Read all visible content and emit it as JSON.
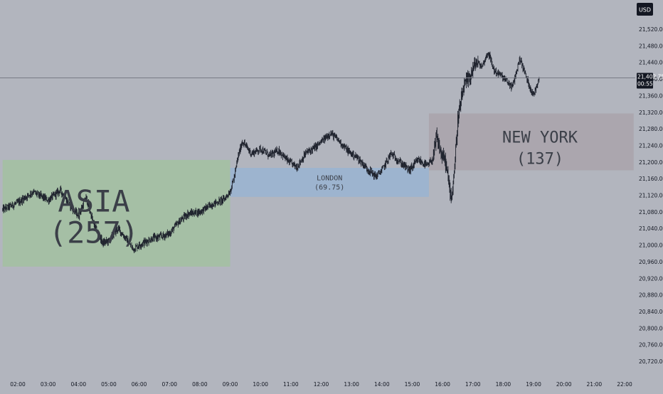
{
  "currency_button": "USD",
  "last_price": {
    "value": "21,402.75",
    "countdown": "00:55"
  },
  "colors": {
    "background": "#b2b5be",
    "axis_text": "#131722",
    "candle": "#1e222d",
    "asia_box": "#a5bfa5",
    "london_box": "#9db4cf",
    "newyork_box": "#aba6ae",
    "session_label": "#3b3f48",
    "price_line": "#787b86",
    "tag_dark": "#131722"
  },
  "chart_data": {
    "type": "candlestick",
    "title": "",
    "xlabel": "",
    "ylabel": "",
    "xlim": [
      1.5,
      22.3
    ],
    "ylim": [
      20700,
      21560
    ],
    "grid": false,
    "x_ticks": [
      "02:00",
      "03:00",
      "04:00",
      "05:00",
      "06:00",
      "07:00",
      "08:00",
      "09:00",
      "10:00",
      "11:00",
      "12:00",
      "13:00",
      "14:00",
      "15:00",
      "16:00",
      "17:00",
      "18:00",
      "19:00",
      "20:00",
      "21:00",
      "22:00"
    ],
    "y_ticks": [
      "21,520.00",
      "21,480.00",
      "21,440.00",
      "21,400.00",
      "21,360.00",
      "21,320.00",
      "21,280.00",
      "21,240.00",
      "21,200.00",
      "21,160.00",
      "21,120.00",
      "21,080.00",
      "21,040.00",
      "21,000.00",
      "20,960.00",
      "20,920.00",
      "20,880.00",
      "20,840.00",
      "20,800.00",
      "20,760.00",
      "20,720.00"
    ],
    "price_path": [
      [
        1.5,
        21085
      ],
      [
        2.0,
        21102
      ],
      [
        2.5,
        21128
      ],
      [
        3.0,
        21108
      ],
      [
        3.4,
        21132
      ],
      [
        3.7,
        21098
      ],
      [
        4.0,
        21070
      ],
      [
        4.25,
        21115
      ],
      [
        4.5,
        21050
      ],
      [
        4.8,
        21005
      ],
      [
        5.0,
        21010
      ],
      [
        5.3,
        21040
      ],
      [
        5.6,
        21012
      ],
      [
        5.8,
        20990
      ],
      [
        6.0,
        21000
      ],
      [
        6.4,
        21015
      ],
      [
        6.8,
        21022
      ],
      [
        7.0,
        21028
      ],
      [
        7.3,
        21055
      ],
      [
        7.6,
        21075
      ],
      [
        8.0,
        21080
      ],
      [
        8.4,
        21098
      ],
      [
        8.8,
        21110
      ],
      [
        9.0,
        21130
      ],
      [
        9.15,
        21168
      ],
      [
        9.25,
        21210
      ],
      [
        9.4,
        21250
      ],
      [
        9.7,
        21220
      ],
      [
        10.0,
        21232
      ],
      [
        10.3,
        21215
      ],
      [
        10.6,
        21228
      ],
      [
        10.9,
        21202
      ],
      [
        11.2,
        21188
      ],
      [
        11.5,
        21222
      ],
      [
        11.8,
        21235
      ],
      [
        12.1,
        21255
      ],
      [
        12.3,
        21270
      ],
      [
        12.6,
        21250
      ],
      [
        12.9,
        21225
      ],
      [
        13.2,
        21210
      ],
      [
        13.5,
        21185
      ],
      [
        13.8,
        21165
      ],
      [
        14.0,
        21180
      ],
      [
        14.3,
        21220
      ],
      [
        14.6,
        21200
      ],
      [
        14.9,
        21180
      ],
      [
        15.2,
        21205
      ],
      [
        15.5,
        21190
      ],
      [
        15.7,
        21210
      ],
      [
        15.8,
        21260
      ],
      [
        15.95,
        21220
      ],
      [
        16.1,
        21200
      ],
      [
        16.2,
        21150
      ],
      [
        16.3,
        21115
      ],
      [
        16.4,
        21190
      ],
      [
        16.5,
        21300
      ],
      [
        16.7,
        21380
      ],
      [
        16.9,
        21405
      ],
      [
        17.1,
        21440
      ],
      [
        17.3,
        21430
      ],
      [
        17.5,
        21465
      ],
      [
        17.7,
        21420
      ],
      [
        17.9,
        21410
      ],
      [
        18.1,
        21395
      ],
      [
        18.3,
        21380
      ],
      [
        18.55,
        21450
      ],
      [
        18.8,
        21395
      ],
      [
        19.0,
        21360
      ],
      [
        19.2,
        21410
      ]
    ],
    "session_boxes": [
      {
        "label": "ASIA",
        "value": "(257)",
        "x0": 1.5,
        "x1": 9.0,
        "y0": 20948,
        "y1": 21205
      },
      {
        "label": "LONDON",
        "value": "(69.75)",
        "x0": 9.0,
        "x1": 15.55,
        "y0": 21116,
        "y1": 21186
      },
      {
        "label": "NEW YORK",
        "value": "(137)",
        "x0": 15.55,
        "x1": 22.3,
        "y0": 21180,
        "y1": 21317
      }
    ],
    "current_price": 21402.75
  }
}
